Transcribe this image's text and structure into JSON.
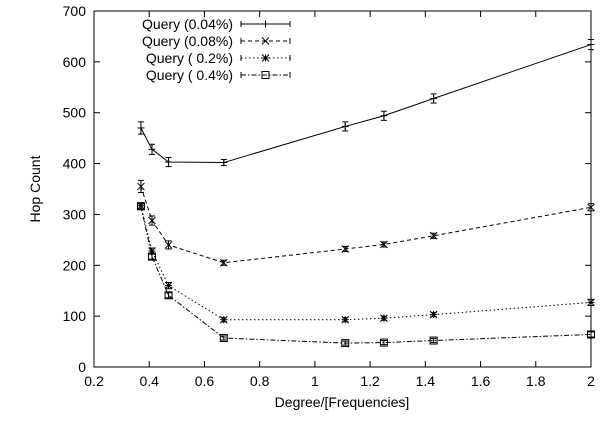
{
  "chart_data": {
    "type": "line",
    "title": "",
    "xlabel": "Degree/[Frequencies]",
    "ylabel": "Hop Count",
    "xlim": [
      0.2,
      2
    ],
    "ylim": [
      0,
      700
    ],
    "xticks": [
      "0.2",
      "0.4",
      "0.6",
      "0.8",
      "1",
      "1.2",
      "1.4",
      "1.6",
      "1.8",
      "2"
    ],
    "yticks": [
      "0",
      "100",
      "200",
      "300",
      "400",
      "500",
      "600",
      "700"
    ],
    "grid": false,
    "legend_position": "top-left",
    "x": [
      0.37,
      0.41,
      0.47,
      0.67,
      1.11,
      1.25,
      1.43,
      2.0
    ],
    "series": [
      {
        "name": "Query (0.04%)",
        "marker": "plus",
        "dash": "solid",
        "values": [
          470,
          428,
          403,
          402,
          473,
          494,
          528,
          634
        ],
        "errors": [
          12,
          10,
          9,
          6,
          9,
          9,
          9,
          10
        ]
      },
      {
        "name": "Query (0.08%)",
        "marker": "cross",
        "dash": "dashed",
        "values": [
          355,
          288,
          240,
          205,
          232,
          241,
          258,
          314
        ],
        "errors": [
          12,
          9,
          8,
          5,
          5,
          5,
          5,
          7
        ]
      },
      {
        "name": "Query ( 0.2%)",
        "marker": "star",
        "dash": "dotted",
        "values": [
          317,
          228,
          160,
          93,
          93,
          96,
          103,
          127
        ],
        "errors": [
          6,
          6,
          6,
          4,
          4,
          4,
          4,
          6
        ]
      },
      {
        "name": "Query ( 0.4%)",
        "marker": "square",
        "dash": "dashdot",
        "values": [
          316,
          217,
          141,
          57,
          47,
          48,
          52,
          64
        ],
        "errors": [
          5,
          5,
          5,
          4,
          4,
          4,
          4,
          5
        ]
      }
    ]
  }
}
